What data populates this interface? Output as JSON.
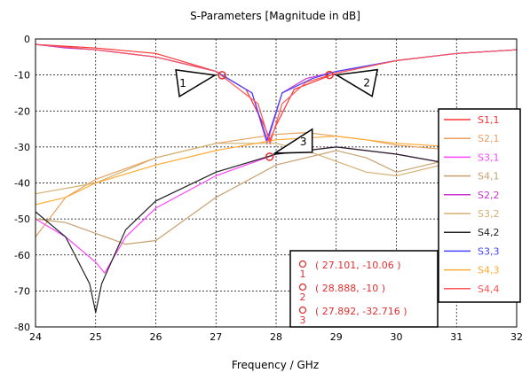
{
  "chart_data": {
    "type": "line",
    "title": "S-Parameters [Magnitude in dB]",
    "xlabel": "Frequency / GHz",
    "ylabel": "",
    "xlim": [
      24,
      32
    ],
    "ylim": [
      -80,
      0
    ],
    "xticks": [
      "24",
      "25",
      "26",
      "27",
      "28",
      "29",
      "30",
      "31",
      "32"
    ],
    "yticks": [
      "0",
      "-10",
      "-20",
      "-30",
      "-40",
      "-50",
      "-60",
      "-70",
      "-80"
    ],
    "grid": true,
    "legend_position": "right",
    "series": [
      {
        "name": "S1,1",
        "color": "#ff3333",
        "x": [
          24,
          25,
          26,
          27,
          27.5,
          27.8,
          27.9,
          28.0,
          28.3,
          29,
          30,
          31,
          32
        ],
        "y": [
          -1.5,
          -2.5,
          -4,
          -9,
          -14,
          -24,
          -28,
          -24,
          -14,
          -9.5,
          -6,
          -4,
          -3
        ]
      },
      {
        "name": "S2,1",
        "color": "#e8a060",
        "x": [
          24,
          24.5,
          25,
          26,
          27,
          28,
          28.5,
          29,
          29.5,
          30,
          31,
          31.5
        ],
        "y": [
          -55,
          -44,
          -39,
          -33,
          -29,
          -26.5,
          -26,
          -27,
          -28,
          -29.5,
          -31,
          -32
        ]
      },
      {
        "name": "S3,1",
        "color": "#ff44ff",
        "x": [
          24,
          24.5,
          25,
          25.15,
          25.5,
          26,
          27,
          28,
          29,
          30,
          31,
          31.5
        ],
        "y": [
          -50,
          -55,
          -62,
          -65,
          -55,
          -47,
          -38,
          -32,
          -30,
          -32,
          -35,
          -36
        ]
      },
      {
        "name": "S4,1",
        "color": "#c8a070",
        "x": [
          24,
          24.5,
          25,
          25.5,
          26,
          27,
          28,
          29,
          29.5,
          30,
          30.5,
          31
        ],
        "y": [
          -50,
          -51,
          -54,
          -57,
          -56,
          -44,
          -35,
          -31,
          -33,
          -37,
          -35,
          -33
        ]
      },
      {
        "name": "S2,2",
        "color": "#cc33cc",
        "x": [
          24,
          24.5,
          25,
          26,
          27,
          27.6,
          27.85,
          28.1,
          28.5,
          29,
          30,
          31,
          32
        ],
        "y": [
          -1.5,
          -2.5,
          -3,
          -5,
          -9,
          -15,
          -29,
          -15,
          -11,
          -9,
          -6,
          -4,
          -3
        ]
      },
      {
        "name": "S3,2",
        "color": "#d4b070",
        "x": [
          24,
          25,
          26,
          27,
          28,
          28.5,
          29,
          29.5,
          30,
          31
        ],
        "y": [
          -43,
          -40,
          -33,
          -29,
          -29,
          -31,
          -34,
          -37,
          -38,
          -34
        ]
      },
      {
        "name": "S4,2",
        "color": "#222222",
        "x": [
          24,
          24.5,
          24.9,
          25.0,
          25.1,
          25.5,
          26,
          27,
          28,
          29,
          30,
          31
        ],
        "y": [
          -48,
          -55,
          -68,
          -76,
          -68,
          -53,
          -45,
          -37,
          -32,
          -30,
          -32,
          -35
        ]
      },
      {
        "name": "S3,3",
        "color": "#4444ff",
        "x": [
          24,
          25,
          26,
          27,
          27.6,
          27.85,
          28.1,
          28.6,
          29,
          30,
          31,
          32
        ],
        "y": [
          -1.5,
          -3,
          -5,
          -9,
          -15,
          -28,
          -15,
          -11,
          -9,
          -6,
          -4,
          -3
        ]
      },
      {
        "name": "S4,3",
        "color": "#ffaa33",
        "x": [
          24,
          24.5,
          25,
          26,
          27,
          28,
          29,
          29.5,
          30,
          31
        ],
        "y": [
          -46,
          -44,
          -40,
          -35,
          -31,
          -28,
          -27,
          -28,
          -29,
          -30
        ]
      },
      {
        "name": "S4,4",
        "color": "#ff5555",
        "x": [
          24,
          25,
          26,
          27,
          27.7,
          27.9,
          28.1,
          28.5,
          29,
          30,
          31,
          32
        ],
        "y": [
          -1.5,
          -3,
          -5,
          -9,
          -18,
          -29,
          -18,
          -12,
          -9.5,
          -6,
          -4,
          -3
        ]
      }
    ],
    "markers": [
      {
        "id": "1",
        "x": 27.101,
        "y": -10.06,
        "label": "( 27.101, -10.06 )"
      },
      {
        "id": "2",
        "x": 28.888,
        "y": -10,
        "label": "( 28.888, -10 )"
      },
      {
        "id": "3",
        "x": 27.892,
        "y": -32.716,
        "label": "( 27.892, -32.716 )"
      }
    ]
  }
}
